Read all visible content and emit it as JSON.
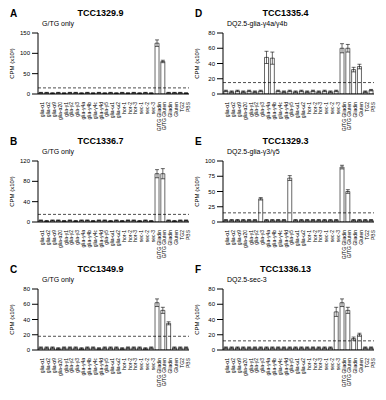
{
  "chart_data": [
    {
      "type": "bar",
      "panel": "A",
      "title": "TCC1329.9",
      "subtitle": "G/TG only",
      "y_label": "CPM (x10³)",
      "color": "#ffffff",
      "categories": [
        "glia-α1",
        "glia-α2",
        "glia-α9",
        "glia-α20",
        "glia-γ1",
        "glia-γ2",
        "glia-γ3",
        "glia-γ4a",
        "glia-γ4b",
        "glia-γ4c",
        "glia-γ4d",
        "glia-γ5",
        "glia-ω1",
        "glia-ω2",
        "hor-1",
        "hor-2",
        "hor-3",
        "sec-1",
        "sec-2",
        "sec-3",
        "G/TG Gliadin",
        "G/TG Gluten",
        "Gliadin",
        "Gluten",
        "TG2",
        "PBS"
      ],
      "values": [
        3,
        3,
        2,
        3,
        2,
        3,
        3,
        2,
        3,
        2,
        3,
        2,
        3,
        2,
        3,
        2,
        3,
        2,
        3,
        2,
        125,
        80,
        3,
        3,
        3,
        2
      ],
      "errors": [
        1,
        1,
        1,
        1,
        1,
        1,
        1,
        1,
        1,
        1,
        1,
        1,
        1,
        1,
        1,
        1,
        1,
        1,
        1,
        1,
        8,
        3,
        1,
        1,
        1,
        1
      ],
      "threshold": 15,
      "ylim": [
        0,
        150
      ],
      "yticks": [
        0,
        50,
        100,
        150
      ]
    },
    {
      "type": "bar",
      "panel": "B",
      "title": "TCC1336.7",
      "subtitle": "G/TG only",
      "y_label": "CPM (x10³)",
      "color": "#ffffff",
      "categories": [
        "glia-α1",
        "glia-α2",
        "glia-α9",
        "glia-α20",
        "glia-γ1",
        "glia-γ2",
        "glia-γ3",
        "glia-γ4a",
        "glia-γ4b",
        "glia-γ4c",
        "glia-γ4d",
        "glia-γ5",
        "glia-ω1",
        "glia-ω2",
        "hor-1",
        "hor-2",
        "hor-3",
        "sec-1",
        "sec-2",
        "sec-3",
        "G/TG Gliadin",
        "G/TG Gluten",
        "Gliadin",
        "Gluten",
        "TG2",
        "PBS"
      ],
      "values": [
        3,
        2,
        3,
        3,
        2,
        3,
        2,
        3,
        3,
        2,
        3,
        3,
        2,
        3,
        2,
        3,
        3,
        2,
        3,
        2,
        95,
        95,
        3,
        2,
        3,
        3
      ],
      "errors": [
        1,
        1,
        1,
        1,
        1,
        1,
        1,
        1,
        1,
        1,
        1,
        1,
        1,
        1,
        1,
        1,
        1,
        1,
        1,
        1,
        8,
        10,
        1,
        1,
        1,
        1
      ],
      "threshold": 15,
      "ylim": [
        0,
        120
      ],
      "yticks": [
        0,
        40,
        80,
        120
      ]
    },
    {
      "type": "bar",
      "panel": "C",
      "title": "TCC1349.9",
      "subtitle": "G/TG only",
      "y_label": "CPM (x10³)",
      "color": "#ffffff",
      "categories": [
        "glia-α1",
        "glia-α2",
        "glia-α9",
        "glia-α20",
        "glia-γ1",
        "glia-γ2",
        "glia-γ3",
        "glia-γ4a",
        "glia-γ4b",
        "glia-γ4c",
        "glia-γ4d",
        "glia-γ5",
        "glia-ω1",
        "glia-ω2",
        "hor-1",
        "hor-2",
        "hor-3",
        "sec-1",
        "sec-2",
        "sec-3",
        "G/TG Gliadin",
        "G/TG Gluten",
        "Gliadin",
        "Gluten",
        "TG2",
        "PBS"
      ],
      "values": [
        3,
        3,
        3,
        2,
        3,
        3,
        3,
        2,
        3,
        3,
        2,
        3,
        3,
        3,
        2,
        3,
        3,
        3,
        2,
        3,
        62,
        52,
        35,
        3,
        3,
        3
      ],
      "errors": [
        1,
        1,
        1,
        1,
        1,
        1,
        1,
        1,
        1,
        1,
        1,
        1,
        1,
        1,
        1,
        1,
        1,
        1,
        1,
        1,
        5,
        4,
        2,
        1,
        1,
        1
      ],
      "threshold": 18,
      "ylim": [
        0,
        80
      ],
      "yticks": [
        0,
        20,
        40,
        60,
        80
      ]
    },
    {
      "type": "bar",
      "panel": "D",
      "title": "TCC1335.4",
      "subtitle": "DQ2.5-glia-γ4a/γ4b",
      "y_label": "CPM (x10³)",
      "color": "#ffffff",
      "categories": [
        "glia-α1",
        "glia-α2",
        "glia-α9",
        "glia-α20",
        "glia-γ1",
        "glia-γ2",
        "glia-γ3",
        "glia-γ4a",
        "glia-γ4b",
        "glia-γ4c",
        "glia-γ4d",
        "glia-γ5",
        "glia-ω1",
        "glia-ω2",
        "hor-1",
        "hor-2",
        "hor-3",
        "sec-1",
        "sec-2",
        "sec-3",
        "G/TG Gliadin",
        "G/TG Gluten",
        "Gliadin",
        "Gluten",
        "TG2",
        "PBS"
      ],
      "values": [
        4,
        3,
        4,
        3,
        4,
        3,
        4,
        48,
        47,
        4,
        3,
        4,
        3,
        4,
        3,
        4,
        3,
        4,
        3,
        4,
        60,
        60,
        32,
        36,
        3,
        5
      ],
      "errors": [
        1,
        1,
        1,
        1,
        1,
        1,
        1,
        8,
        8,
        1,
        1,
        1,
        1,
        1,
        1,
        1,
        1,
        1,
        1,
        1,
        6,
        5,
        3,
        3,
        1,
        1
      ],
      "threshold": 15,
      "ylim": [
        0,
        80
      ],
      "yticks": [
        0,
        20,
        40,
        60,
        80
      ]
    },
    {
      "type": "bar",
      "panel": "E",
      "title": "TCC1329.3",
      "subtitle": "DQ2.5-glia-γ3/γ5",
      "y_label": "CPM (x10³)",
      "color": "#ffffff",
      "categories": [
        "glia-α1",
        "glia-α2",
        "glia-α9",
        "glia-α20",
        "glia-γ1",
        "glia-γ2",
        "glia-γ3",
        "glia-γ4a",
        "glia-γ4b",
        "glia-γ4c",
        "glia-γ4d",
        "glia-γ5",
        "glia-ω1",
        "glia-ω2",
        "hor-1",
        "hor-2",
        "hor-3",
        "sec-1",
        "sec-2",
        "sec-3",
        "G/TG Gliadin",
        "G/TG Gluten",
        "Gliadin",
        "Gluten",
        "TG2",
        "PBS"
      ],
      "values": [
        3,
        3,
        3,
        3,
        3,
        3,
        38,
        3,
        3,
        3,
        3,
        72,
        3,
        3,
        3,
        3,
        3,
        3,
        3,
        3,
        90,
        50,
        3,
        3,
        3,
        3
      ],
      "errors": [
        1,
        1,
        1,
        1,
        1,
        1,
        2,
        1,
        1,
        1,
        1,
        4,
        1,
        1,
        1,
        1,
        1,
        1,
        1,
        1,
        3,
        3,
        1,
        1,
        1,
        1
      ],
      "threshold": 15,
      "ylim": [
        0,
        100
      ],
      "yticks": [
        0,
        25,
        50,
        75,
        100
      ]
    },
    {
      "type": "bar",
      "panel": "F",
      "title": "TCC1336.13",
      "subtitle": "DQ2.5-sec-3",
      "y_label": "CPM (x10³)",
      "color": "#ffffff",
      "categories": [
        "glia-α1",
        "glia-α2",
        "glia-α9",
        "glia-α20",
        "glia-γ1",
        "glia-γ2",
        "glia-γ3",
        "glia-γ4a",
        "glia-γ4b",
        "glia-γ4c",
        "glia-γ4d",
        "glia-γ5",
        "glia-ω1",
        "glia-ω2",
        "hor-1",
        "hor-2",
        "hor-3",
        "sec-1",
        "sec-2",
        "sec-3",
        "G/TG Gliadin",
        "G/TG Gluten",
        "Gliadin",
        "Gluten",
        "TG2",
        "PBS"
      ],
      "values": [
        3,
        3,
        3,
        3,
        3,
        3,
        3,
        3,
        3,
        3,
        3,
        3,
        3,
        3,
        3,
        3,
        3,
        3,
        3,
        50,
        62,
        52,
        15,
        20,
        3,
        3
      ],
      "errors": [
        1,
        1,
        1,
        1,
        1,
        1,
        1,
        1,
        1,
        1,
        1,
        1,
        1,
        1,
        1,
        1,
        1,
        1,
        1,
        6,
        5,
        4,
        2,
        2,
        1,
        1
      ],
      "threshold": 12,
      "ylim": [
        0,
        80
      ],
      "yticks": [
        0,
        20,
        40,
        60,
        80
      ]
    }
  ]
}
